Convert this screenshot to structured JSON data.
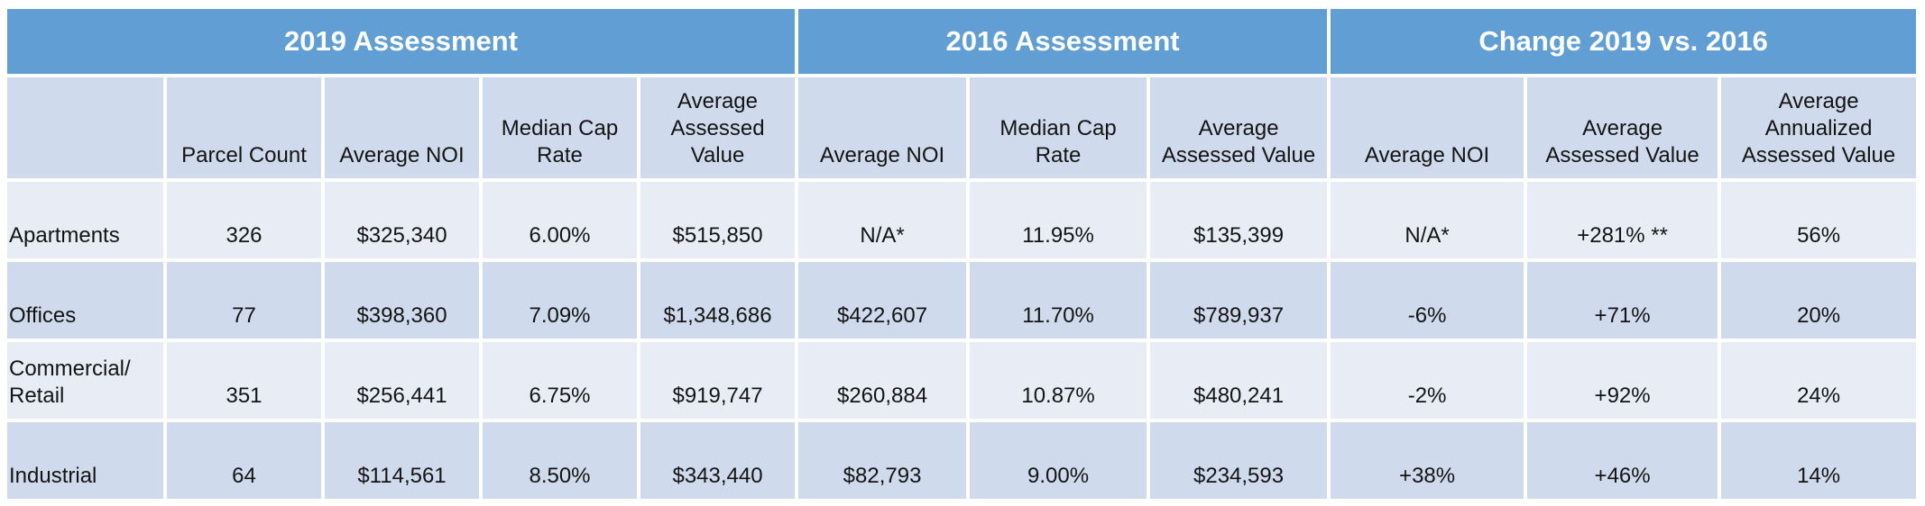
{
  "groups": [
    "2019 Assessment",
    "2016 Assessment",
    "Change 2019 vs. 2016"
  ],
  "columns": [
    "",
    "Parcel Count",
    "Average NOI",
    "Median Cap Rate",
    "Average Assessed Value",
    "Average NOI",
    "Median Cap Rate",
    "Average Assessed Value",
    "Average NOI",
    "Average Assessed Value",
    "Average Annualized Assessed Value"
  ],
  "rows": [
    [
      "Apartments",
      "326",
      "$325,340",
      "6.00%",
      "$515,850",
      "N/A*",
      "11.95%",
      "$135,399",
      "N/A*",
      "+281% **",
      "56%"
    ],
    [
      "Offices",
      "77",
      "$398,360",
      "7.09%",
      "$1,348,686",
      "$422,607",
      "11.70%",
      "$789,937",
      "-6%",
      "+71%",
      "20%"
    ],
    [
      "Commercial/ Retail",
      "351",
      "$256,441",
      "6.75%",
      "$919,747",
      "$260,884",
      "10.87%",
      "$480,241",
      "-2%",
      "+92%",
      "24%"
    ],
    [
      "Industrial",
      "64",
      "$114,561",
      "8.50%",
      "$343,440",
      "$82,793",
      "9.00%",
      "$234,593",
      "+38%",
      "+46%",
      "14%"
    ]
  ]
}
